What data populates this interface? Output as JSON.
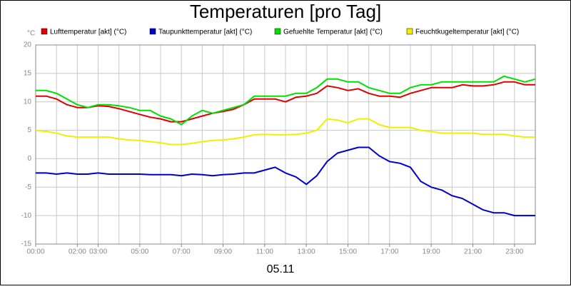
{
  "chart_data": {
    "type": "line",
    "title": "Temperaturen [pro Tag]",
    "y_unit": "°C",
    "x_label": "05.11",
    "x": [
      0,
      0.5,
      1,
      1.5,
      2,
      2.5,
      3,
      3.5,
      4,
      4.5,
      5,
      5.5,
      6,
      6.5,
      7,
      7.5,
      8,
      8.5,
      9,
      9.5,
      10,
      10.5,
      11,
      11.5,
      12,
      12.5,
      13,
      13.5,
      14,
      14.5,
      15,
      15.5,
      16,
      16.5,
      17,
      17.5,
      18,
      18.5,
      19,
      19.5,
      20,
      20.5,
      21,
      21.5,
      22,
      22.5,
      23,
      23.5,
      24
    ],
    "series": [
      {
        "name": "Lufttemperatur [akt] (°C)",
        "color": "#e00000",
        "values": [
          11,
          11,
          10.5,
          9.5,
          9,
          9,
          9.3,
          9.2,
          8.8,
          8.3,
          7.8,
          7.3,
          7,
          6.5,
          6.5,
          7,
          7.5,
          8,
          8.3,
          8.7,
          9.5,
          10.5,
          10.5,
          10.5,
          10,
          10.8,
          11,
          11.5,
          12.8,
          12.5,
          12,
          12.3,
          11.5,
          11,
          11,
          10.8,
          11.5,
          12,
          12.5,
          12.5,
          12.5,
          13,
          12.8,
          12.8,
          13,
          13.5,
          13.5,
          13,
          13
        ]
      },
      {
        "name": "Taupunkttemperatur [akt] (°C)",
        "color": "#0000c8",
        "values": [
          -2.5,
          -2.5,
          -2.7,
          -2.5,
          -2.7,
          -2.7,
          -2.5,
          -2.7,
          -2.7,
          -2.7,
          -2.7,
          -2.8,
          -2.8,
          -2.8,
          -3,
          -2.7,
          -2.8,
          -3,
          -2.8,
          -2.7,
          -2.5,
          -2.5,
          -2,
          -1.5,
          -2.5,
          -3.2,
          -4.5,
          -3,
          -0.5,
          1,
          1.5,
          2,
          2,
          0.5,
          -0.5,
          -0.8,
          -1.5,
          -4,
          -5,
          -5.5,
          -6.5,
          -7,
          -8,
          -9,
          -9.5,
          -9.5,
          -10,
          -10,
          -10
        ]
      },
      {
        "name": "Gefuehlte Temperatur [akt] (°C)",
        "color": "#00e000",
        "values": [
          12,
          12,
          11.5,
          10.5,
          9.5,
          9,
          9.5,
          9.5,
          9.3,
          9,
          8.5,
          8.5,
          7.5,
          7,
          6,
          7.5,
          8.5,
          8,
          8.5,
          9,
          9.5,
          11,
          11,
          11,
          11,
          11.5,
          11.5,
          12.5,
          14,
          14,
          13.5,
          13.5,
          12.5,
          12,
          11.5,
          11.5,
          12.5,
          13,
          13,
          13.5,
          13.5,
          13.5,
          13.5,
          13.5,
          13.5,
          14.5,
          14,
          13.5,
          14
        ]
      },
      {
        "name": "Feuchtkugeltemperatur [akt] (°C)",
        "color": "#f0f000",
        "values": [
          5,
          4.8,
          4.5,
          4,
          3.8,
          3.8,
          3.8,
          3.8,
          3.5,
          3.3,
          3.2,
          3,
          2.8,
          2.5,
          2.5,
          2.7,
          3,
          3.2,
          3.3,
          3.5,
          3.8,
          4.2,
          4.3,
          4.2,
          4.2,
          4.3,
          4.5,
          5,
          7,
          6.8,
          6.3,
          7,
          7,
          6,
          5.5,
          5.5,
          5.5,
          5,
          4.8,
          4.5,
          4.5,
          4.5,
          4.5,
          4.3,
          4.3,
          4.3,
          4,
          3.8,
          3.8
        ]
      }
    ],
    "xlim": [
      0,
      24
    ],
    "xticks": [
      {
        "value": 0,
        "label": "00:00"
      },
      {
        "value": 2,
        "label": "02:00"
      },
      {
        "value": 3,
        "label": "03:00"
      },
      {
        "value": 5,
        "label": "05:00"
      },
      {
        "value": 7,
        "label": "07:00"
      },
      {
        "value": 9,
        "label": "09:00"
      },
      {
        "value": 11,
        "label": "11:00"
      },
      {
        "value": 13,
        "label": "13:00"
      },
      {
        "value": 15,
        "label": "15:00"
      },
      {
        "value": 17,
        "label": "17:00"
      },
      {
        "value": 19,
        "label": "19:00"
      },
      {
        "value": 21,
        "label": "21:00"
      },
      {
        "value": 23,
        "label": "23:00"
      }
    ],
    "xgrid": [
      0,
      1,
      2,
      3,
      4,
      5,
      6,
      7,
      8,
      9,
      10,
      11,
      12,
      13,
      14,
      15,
      16,
      17,
      18,
      19,
      20,
      21,
      22,
      23,
      24
    ],
    "ylim": [
      -15,
      20
    ],
    "yticks": [
      -15,
      -10,
      -5,
      0,
      5,
      10,
      15,
      20
    ],
    "grid": true
  }
}
